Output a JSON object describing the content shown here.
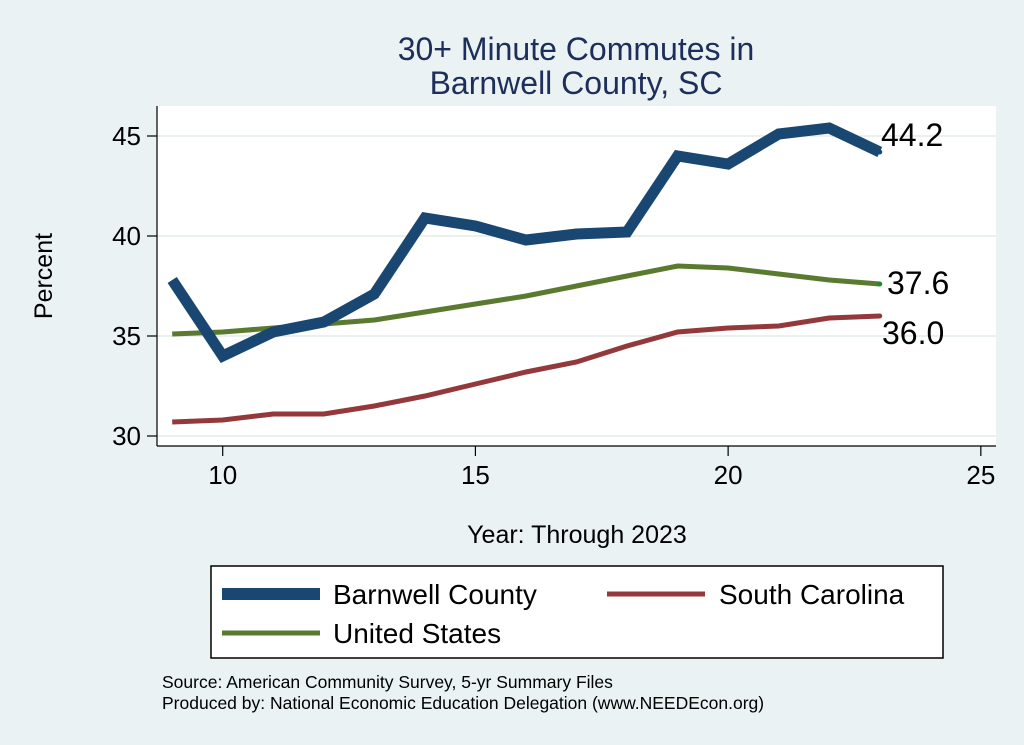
{
  "chart_data": {
    "type": "line",
    "title": [
      "30+ Minute Commutes in",
      "Barnwell County, SC"
    ],
    "xlabel": "Year: Through 2023",
    "ylabel": "Percent",
    "xlim": [
      8.7,
      25.3
    ],
    "ylim": [
      29.5,
      46.5
    ],
    "xticks": [
      10,
      15,
      20,
      25
    ],
    "yticks": [
      30,
      35,
      40,
      45
    ],
    "grid": true,
    "x": [
      9,
      10,
      11,
      12,
      13,
      14,
      15,
      16,
      17,
      18,
      19,
      20,
      21,
      22,
      23
    ],
    "series": [
      {
        "name": "Barnwell County",
        "color": "#1a4672",
        "values": [
          37.8,
          34.0,
          35.2,
          35.7,
          37.1,
          40.9,
          40.5,
          39.8,
          40.1,
          40.2,
          44.0,
          43.6,
          45.1,
          45.4,
          44.2
        ],
        "end_label": "44.2"
      },
      {
        "name": "South Carolina",
        "color": "#94393b",
        "values": [
          30.7,
          30.8,
          31.1,
          31.1,
          31.5,
          32.0,
          32.6,
          33.2,
          33.7,
          34.5,
          35.2,
          35.4,
          35.5,
          35.9,
          36.0
        ],
        "end_label": "36.0"
      },
      {
        "name": "United States",
        "color": "#5a7a30",
        "values": [
          35.1,
          35.2,
          35.4,
          35.6,
          35.8,
          36.2,
          36.6,
          37.0,
          37.5,
          38.0,
          38.5,
          38.4,
          38.1,
          37.8,
          37.6
        ],
        "end_label": "37.6"
      }
    ],
    "legend": {
      "position": "bottom",
      "items": [
        "Barnwell County",
        "South Carolina",
        "United States"
      ]
    }
  },
  "footer": {
    "source": "Source: American Community Survey, 5-yr Summary Files",
    "produced_by": "Produced by: National Economic Education Delegation (www.NEEDEcon.org)"
  }
}
